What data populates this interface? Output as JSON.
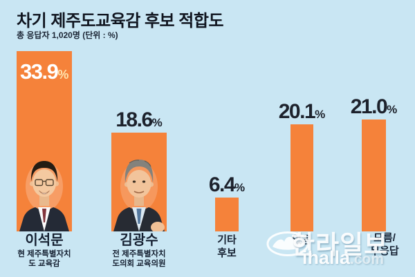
{
  "header": {
    "title": "차기 제주도교육감 후보 적합도",
    "subtitle": "총 응답자 1,020명 (단위 : %)"
  },
  "units": {
    "percent": "%"
  },
  "chart_data": {
    "type": "bar",
    "title": "차기 제주도교육감 후보 적합도",
    "subtitle": "총 응답자 1,020명 (단위 : %)",
    "unit": "%",
    "total_respondents": "1,020명",
    "categories": [
      "이석문",
      "김광수",
      "기타 후보",
      "없음",
      "모름/무응답"
    ],
    "values": [
      33.9,
      18.6,
      6.4,
      20.1,
      21.0
    ],
    "value_labels": [
      "33.9",
      "18.6",
      "6.4",
      "20.1",
      "21.0"
    ],
    "ylim": [
      0,
      36
    ],
    "grid": false,
    "legend": "none",
    "bar_color": "#f5823a",
    "background_color": "#c9e6f3",
    "value_text_color": "#1d222c",
    "value_in_bar_color": "#ffffff",
    "percent_in_bar_color": "#ffe3ac"
  },
  "bars": [
    {
      "value_label": "33.9",
      "name": "이석문",
      "sub_line1": "현 제주특별자치",
      "sub_line2": "도 교육감",
      "has_photo": "true"
    },
    {
      "value_label": "18.6",
      "name": "김광수",
      "sub_line1": "전 제주특별자치",
      "sub_line2": "도의회 교육의원",
      "has_photo": "true"
    },
    {
      "value_label": "6.4",
      "label_line1": "기타",
      "label_line2": "후보"
    },
    {
      "value_label": "20.1",
      "label_line1": "없음",
      "label_line2": ""
    },
    {
      "value_label": "21.0",
      "label_line1": "모름/",
      "label_line2": "무응답"
    }
  ],
  "watermark": {
    "logo": "halla-wave-logo",
    "brand": "한라일보",
    "domain_name": "ihalla",
    "domain_tld": ".com"
  }
}
